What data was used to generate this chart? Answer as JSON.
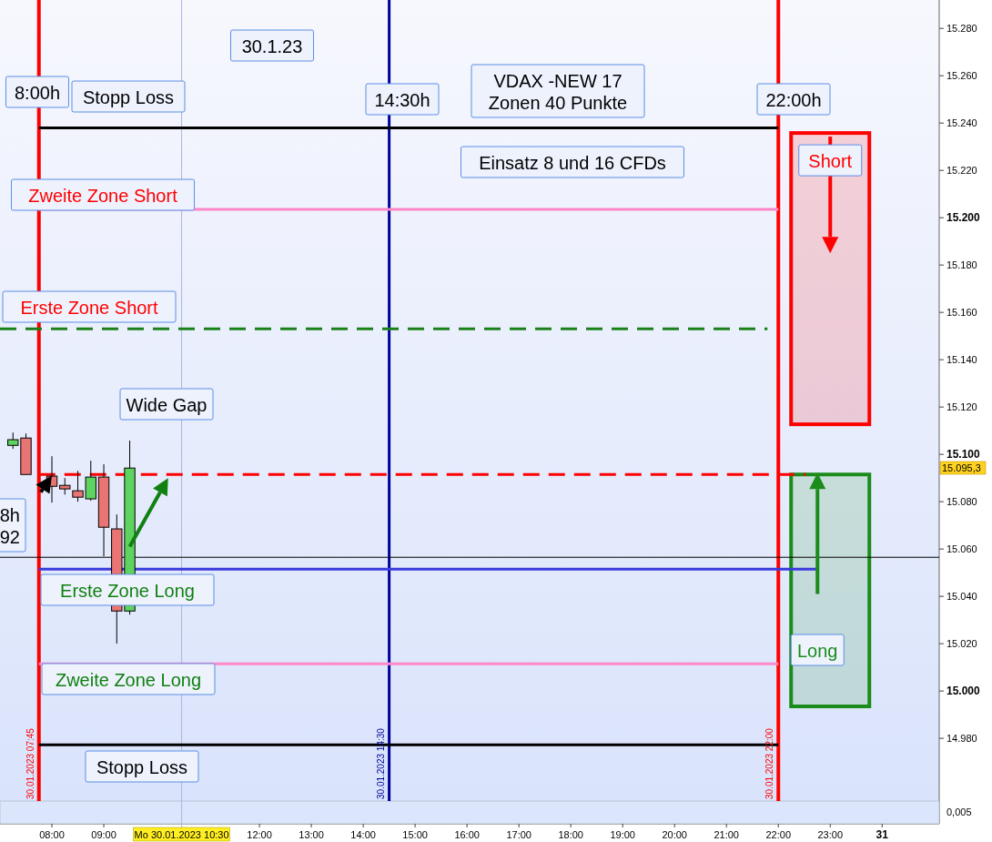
{
  "chart_data": {
    "type": "candlestick",
    "x": [
      "2023-01-30T07:15",
      "2023-01-30T07:30",
      "2023-01-30T08:00",
      "2023-01-30T08:15",
      "2023-01-30T08:30",
      "2023-01-30T08:45",
      "2023-01-30T09:00",
      "2023-01-30T09:15",
      "2023-01-30T09:30"
    ],
    "ohlc": [
      [
        15103.8,
        15109.2,
        15102.3,
        15106.2
      ],
      [
        15106.9,
        15108.8,
        15091.5,
        15091.5
      ],
      [
        15090.8,
        15099.2,
        15079.6,
        15086.5
      ],
      [
        15086.9,
        15090,
        15083,
        15085.4
      ],
      [
        15084.6,
        15093,
        15080,
        15081.9
      ],
      [
        15081.2,
        15097.3,
        15080.4,
        15090.4
      ],
      [
        15090.4,
        15095.8,
        15056.9,
        15069.2
      ],
      [
        15068.5,
        15074.6,
        15020,
        15033.8
      ],
      [
        15033.8,
        15105.8,
        15032.3,
        15094.2
      ]
    ],
    "xlim": [
      "2023-01-30T07:00",
      "2023-01-31T01:06"
    ],
    "xticks": [
      {
        "value": "2023-01-30T08:00",
        "label": "08:00"
      },
      {
        "value": "2023-01-30T09:00",
        "label": "09:00"
      },
      {
        "value": "2023-01-30T12:00",
        "label": "12:00"
      },
      {
        "value": "2023-01-30T13:00",
        "label": "13:00"
      },
      {
        "value": "2023-01-30T14:00",
        "label": "14:00"
      },
      {
        "value": "2023-01-30T15:00",
        "label": "15:00"
      },
      {
        "value": "2023-01-30T16:00",
        "label": "16:00"
      },
      {
        "value": "2023-01-30T17:00",
        "label": "17:00"
      },
      {
        "value": "2023-01-30T18:00",
        "label": "18:00"
      },
      {
        "value": "2023-01-30T19:00",
        "label": "19:00"
      },
      {
        "value": "2023-01-30T20:00",
        "label": "20:00"
      },
      {
        "value": "2023-01-30T21:00",
        "label": "21:00"
      },
      {
        "value": "2023-01-30T22:00",
        "label": "22:00"
      },
      {
        "value": "2023-01-30T23:00",
        "label": "23:00"
      },
      {
        "value": "2023-01-31T00:00",
        "label": "31"
      }
    ],
    "ylim": [
      14953.5,
      15292
    ],
    "yticks": [
      {
        "value": 14980,
        "label": "14.980"
      },
      {
        "value": 15000,
        "label": "15.000"
      },
      {
        "value": 15020,
        "label": "15.020"
      },
      {
        "value": 15040,
        "label": "15.040"
      },
      {
        "value": 15060,
        "label": "15.060"
      },
      {
        "value": 15080,
        "label": "15.080"
      },
      {
        "value": 15100,
        "label": "15.100"
      },
      {
        "value": 15120,
        "label": "15.120"
      },
      {
        "value": 15140,
        "label": "15.140"
      },
      {
        "value": 15160,
        "label": "15.160"
      },
      {
        "value": 15180,
        "label": "15.180"
      },
      {
        "value": 15200,
        "label": "15.200"
      },
      {
        "value": 15220,
        "label": "15.220"
      },
      {
        "value": 15240,
        "label": "15.240"
      },
      {
        "value": 15260,
        "label": "15.260"
      },
      {
        "value": 15280,
        "label": "15.280"
      }
    ],
    "ref_lines": [
      {
        "axis": "x",
        "value": "2023-01-30T07:45",
        "label": "30.01.2023 07:45",
        "color": "#ff0000"
      },
      {
        "axis": "x",
        "value": "2023-01-30T14:30",
        "label": "30.01.2023 14:30",
        "color": "#00009c"
      },
      {
        "axis": "x",
        "value": "2023-01-30T22:00",
        "label": "30.01.2023 22:00",
        "color": "#ff0000"
      },
      {
        "axis": "x",
        "value": "2023-01-30T10:30",
        "label": "Mo 30.01.2023 10:30",
        "color": "#b0b4e0"
      },
      {
        "axis": "y",
        "value": 15238,
        "label": "Stopp Loss",
        "color": "#000000"
      },
      {
        "axis": "y",
        "value": 15203.5,
        "label": "Zweite Zone Short",
        "color": "#ff88c8"
      },
      {
        "axis": "y",
        "value": 15153,
        "label": "Erste Zone Short",
        "color": "#1a801a",
        "line_style": "dashed"
      },
      {
        "axis": "y",
        "value": 15091.5,
        "color": "#ff0000",
        "line_style": "dashed"
      },
      {
        "axis": "y",
        "value": 15056.5,
        "color": "#000000"
      },
      {
        "axis": "y",
        "value": 15051.5,
        "label": "Erste  Zone Long",
        "color": "#3b3bdc"
      },
      {
        "axis": "y",
        "value": 15011.5,
        "label": "Zweite Zone Long",
        "color": "#ff88c8"
      },
      {
        "axis": "y",
        "value": 14977.3,
        "label": "Stopp Loss",
        "color": "#000000"
      }
    ],
    "bands": [
      {
        "axis": "y",
        "from": 15112.7,
        "to": 15235.8,
        "label": "Short",
        "color": "#ff0000"
      },
      {
        "axis": "y",
        "from": 14993.5,
        "to": 15091.5,
        "label": "Long",
        "color": "#1a8c1a"
      }
    ],
    "annotations": [
      "30.1.23",
      "8:00h",
      "14:30h",
      "VDAX -NEW 17\nZonen 40  Punkte",
      "22:00h",
      "Einsatz 8 und 16 CFDs",
      "Wide Gap",
      "8h\n92",
      "15.095,3",
      "0,005"
    ]
  }
}
